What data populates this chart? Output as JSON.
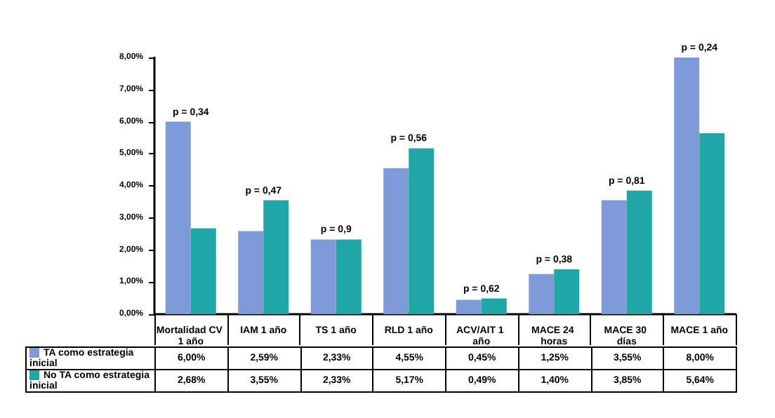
{
  "chart_data": {
    "type": "bar",
    "categories": [
      "Mortalidad CV 1 año",
      "IAM 1 año",
      "TS 1 año",
      "RLD 1 año",
      "ACV/AIT 1 año",
      "MACE 24 horas",
      "MACE 30 días",
      "MACE 1 año"
    ],
    "series": [
      {
        "name": "TA como estrategia inicial",
        "color": "#7f9ad8",
        "values": [
          6.0,
          2.59,
          2.33,
          4.55,
          0.45,
          1.25,
          3.55,
          8.0
        ],
        "value_labels": [
          "6,00%",
          "2,59%",
          "2,33%",
          "4,55%",
          "0,45%",
          "1,25%",
          "3,55%",
          "8,00%"
        ]
      },
      {
        "name": "No TA como estrategia inicial",
        "color": "#1fa6a6",
        "values": [
          2.68,
          3.55,
          2.33,
          5.17,
          0.49,
          1.4,
          3.85,
          5.64
        ],
        "value_labels": [
          "2,68%",
          "3,55%",
          "2,33%",
          "5,17%",
          "0,49%",
          "1,40%",
          "3,85%",
          "5,64%"
        ]
      }
    ],
    "ylim": [
      0,
      8
    ],
    "yticks": [
      {
        "value": 0,
        "label": "0,00%"
      },
      {
        "value": 1,
        "label": "1,00%"
      },
      {
        "value": 2,
        "label": "2,00%"
      },
      {
        "value": 3,
        "label": "3,00%"
      },
      {
        "value": 4,
        "label": "4,00%"
      },
      {
        "value": 5,
        "label": "5,00%"
      },
      {
        "value": 6,
        "label": "6,00%"
      },
      {
        "value": 7,
        "label": "7,00%"
      },
      {
        "value": 8,
        "label": "8,00%"
      }
    ],
    "annotations": [
      {
        "text": "p = 0,34",
        "x": "Mortalidad CV 1 año",
        "y": 6.0
      },
      {
        "text": "p = 0,47",
        "x": "IAM 1 año",
        "y": 3.55
      },
      {
        "text": "p = 0,9",
        "x": "TS 1 año",
        "y": 2.33
      },
      {
        "text": "p = 0,56",
        "x": "RLD 1 año",
        "y": 5.17
      },
      {
        "text": "p = 0,62",
        "x": "ACV/AIT 1 año",
        "y": 0.49
      },
      {
        "text": "p = 0,38",
        "x": "MACE 24 horas",
        "y": 1.4
      },
      {
        "text": "p = 0,81",
        "x": "MACE 30 días",
        "y": 3.85
      },
      {
        "text": "p = 0,24",
        "x": "MACE 1 año",
        "y": 8.0
      }
    ],
    "legend": "bottom left",
    "grid": false
  }
}
